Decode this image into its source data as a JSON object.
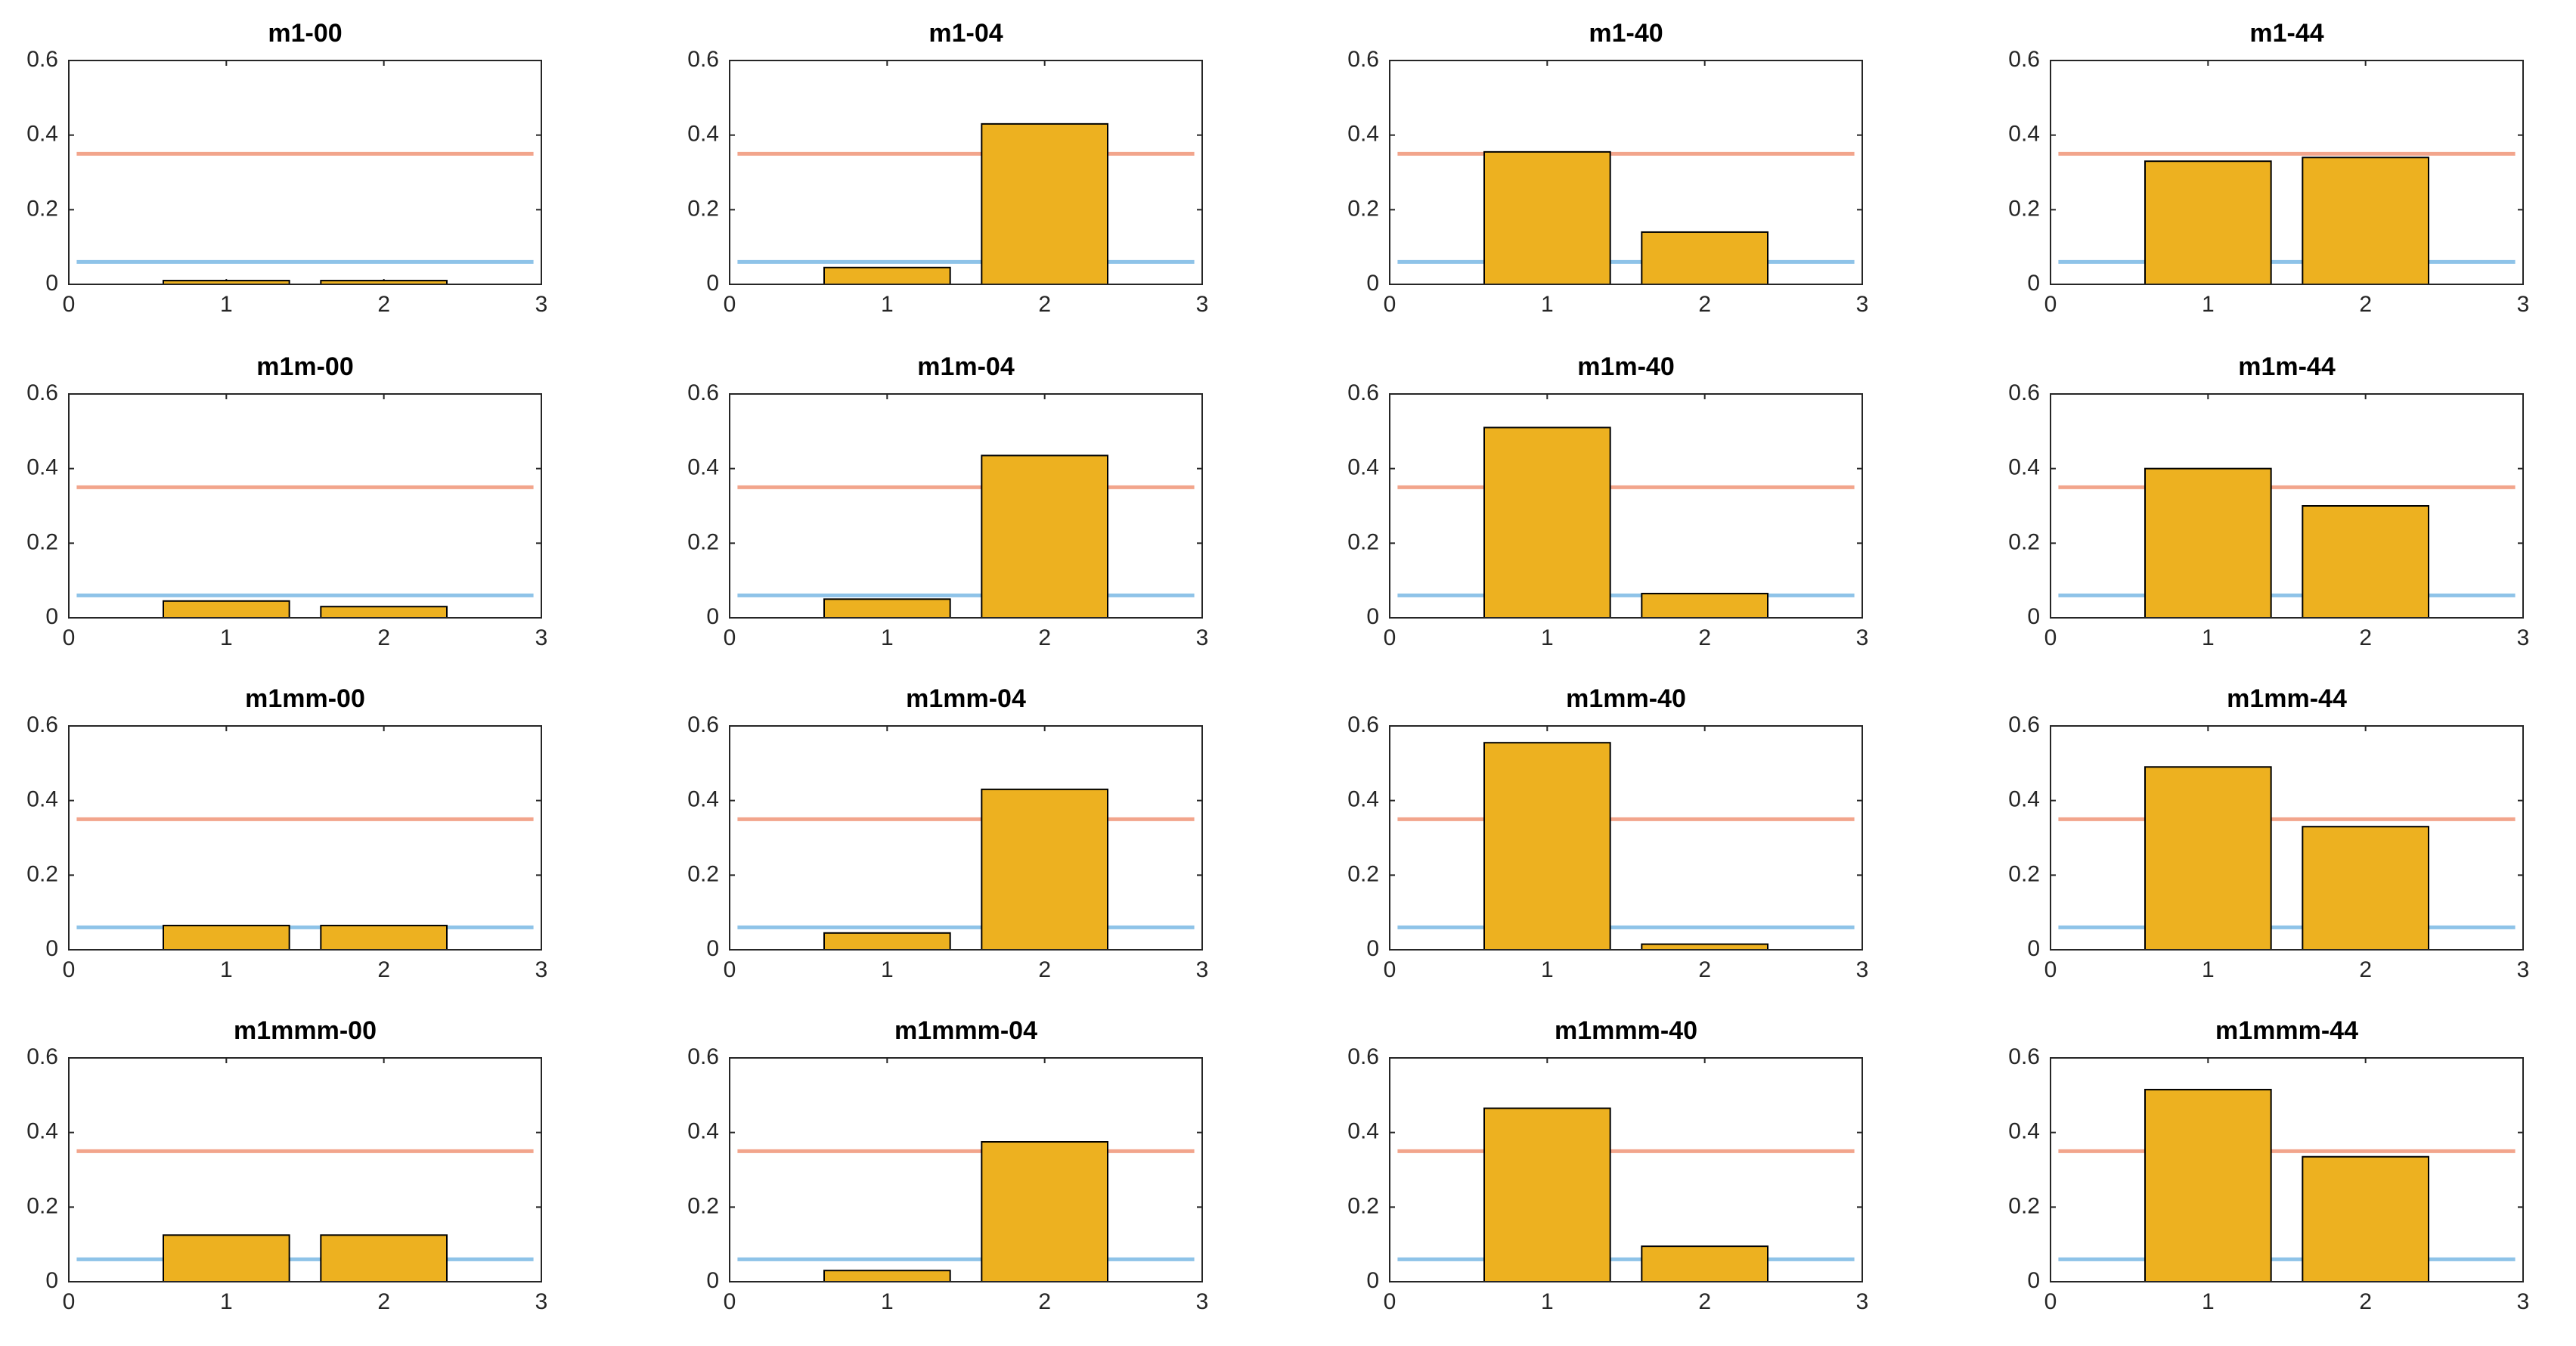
{
  "chart_data": [
    {
      "type": "bar",
      "title": "m1-00",
      "x": [
        1,
        2
      ],
      "values": [
        0.01,
        0.01
      ],
      "color": "#edb120",
      "xlim": [
        0,
        3
      ],
      "ylim": [
        0,
        0.6
      ],
      "xticks": [
        0,
        1,
        2,
        3
      ],
      "yticks": [
        0,
        0.2,
        0.4,
        0.6
      ],
      "reference_lines": [
        {
          "value": 0.35,
          "color": "#f2a58c"
        },
        {
          "value": 0.06,
          "color": "#8ec3e8"
        }
      ]
    },
    {
      "type": "bar",
      "title": "m1-04",
      "x": [
        1,
        2
      ],
      "values": [
        0.045,
        0.43
      ],
      "color": "#edb120",
      "xlim": [
        0,
        3
      ],
      "ylim": [
        0,
        0.6
      ],
      "xticks": [
        0,
        1,
        2,
        3
      ],
      "yticks": [
        0,
        0.2,
        0.4,
        0.6
      ],
      "reference_lines": [
        {
          "value": 0.35,
          "color": "#f2a58c"
        },
        {
          "value": 0.06,
          "color": "#8ec3e8"
        }
      ]
    },
    {
      "type": "bar",
      "title": "m1-40",
      "x": [
        1,
        2
      ],
      "values": [
        0.355,
        0.14
      ],
      "color": "#edb120",
      "xlim": [
        0,
        3
      ],
      "ylim": [
        0,
        0.6
      ],
      "xticks": [
        0,
        1,
        2,
        3
      ],
      "yticks": [
        0,
        0.2,
        0.4,
        0.6
      ],
      "reference_lines": [
        {
          "value": 0.35,
          "color": "#f2a58c"
        },
        {
          "value": 0.06,
          "color": "#8ec3e8"
        }
      ]
    },
    {
      "type": "bar",
      "title": "m1-44",
      "x": [
        1,
        2
      ],
      "values": [
        0.33,
        0.34
      ],
      "color": "#edb120",
      "xlim": [
        0,
        3
      ],
      "ylim": [
        0,
        0.6
      ],
      "xticks": [
        0,
        1,
        2,
        3
      ],
      "yticks": [
        0,
        0.2,
        0.4,
        0.6
      ],
      "reference_lines": [
        {
          "value": 0.35,
          "color": "#f2a58c"
        },
        {
          "value": 0.06,
          "color": "#8ec3e8"
        }
      ]
    },
    {
      "type": "bar",
      "title": "m1m-00",
      "x": [
        1,
        2
      ],
      "values": [
        0.045,
        0.03
      ],
      "color": "#edb120",
      "xlim": [
        0,
        3
      ],
      "ylim": [
        0,
        0.6
      ],
      "xticks": [
        0,
        1,
        2,
        3
      ],
      "yticks": [
        0,
        0.2,
        0.4,
        0.6
      ],
      "reference_lines": [
        {
          "value": 0.35,
          "color": "#f2a58c"
        },
        {
          "value": 0.06,
          "color": "#8ec3e8"
        }
      ]
    },
    {
      "type": "bar",
      "title": "m1m-04",
      "x": [
        1,
        2
      ],
      "values": [
        0.05,
        0.435
      ],
      "color": "#edb120",
      "xlim": [
        0,
        3
      ],
      "ylim": [
        0,
        0.6
      ],
      "xticks": [
        0,
        1,
        2,
        3
      ],
      "yticks": [
        0,
        0.2,
        0.4,
        0.6
      ],
      "reference_lines": [
        {
          "value": 0.35,
          "color": "#f2a58c"
        },
        {
          "value": 0.06,
          "color": "#8ec3e8"
        }
      ]
    },
    {
      "type": "bar",
      "title": "m1m-40",
      "x": [
        1,
        2
      ],
      "values": [
        0.51,
        0.065
      ],
      "color": "#edb120",
      "xlim": [
        0,
        3
      ],
      "ylim": [
        0,
        0.6
      ],
      "xticks": [
        0,
        1,
        2,
        3
      ],
      "yticks": [
        0,
        0.2,
        0.4,
        0.6
      ],
      "reference_lines": [
        {
          "value": 0.35,
          "color": "#f2a58c"
        },
        {
          "value": 0.06,
          "color": "#8ec3e8"
        }
      ]
    },
    {
      "type": "bar",
      "title": "m1m-44",
      "x": [
        1,
        2
      ],
      "values": [
        0.4,
        0.3
      ],
      "color": "#edb120",
      "xlim": [
        0,
        3
      ],
      "ylim": [
        0,
        0.6
      ],
      "xticks": [
        0,
        1,
        2,
        3
      ],
      "yticks": [
        0,
        0.2,
        0.4,
        0.6
      ],
      "reference_lines": [
        {
          "value": 0.35,
          "color": "#f2a58c"
        },
        {
          "value": 0.06,
          "color": "#8ec3e8"
        }
      ]
    },
    {
      "type": "bar",
      "title": "m1mm-00",
      "x": [
        1,
        2
      ],
      "values": [
        0.065,
        0.065
      ],
      "color": "#edb120",
      "xlim": [
        0,
        3
      ],
      "ylim": [
        0,
        0.6
      ],
      "xticks": [
        0,
        1,
        2,
        3
      ],
      "yticks": [
        0,
        0.2,
        0.4,
        0.6
      ],
      "reference_lines": [
        {
          "value": 0.35,
          "color": "#f2a58c"
        },
        {
          "value": 0.06,
          "color": "#8ec3e8"
        }
      ]
    },
    {
      "type": "bar",
      "title": "m1mm-04",
      "x": [
        1,
        2
      ],
      "values": [
        0.045,
        0.43
      ],
      "color": "#edb120",
      "xlim": [
        0,
        3
      ],
      "ylim": [
        0,
        0.6
      ],
      "xticks": [
        0,
        1,
        2,
        3
      ],
      "yticks": [
        0,
        0.2,
        0.4,
        0.6
      ],
      "reference_lines": [
        {
          "value": 0.35,
          "color": "#f2a58c"
        },
        {
          "value": 0.06,
          "color": "#8ec3e8"
        }
      ]
    },
    {
      "type": "bar",
      "title": "m1mm-40",
      "x": [
        1,
        2
      ],
      "values": [
        0.555,
        0.015
      ],
      "color": "#edb120",
      "xlim": [
        0,
        3
      ],
      "ylim": [
        0,
        0.6
      ],
      "xticks": [
        0,
        1,
        2,
        3
      ],
      "yticks": [
        0,
        0.2,
        0.4,
        0.6
      ],
      "reference_lines": [
        {
          "value": 0.35,
          "color": "#f2a58c"
        },
        {
          "value": 0.06,
          "color": "#8ec3e8"
        }
      ]
    },
    {
      "type": "bar",
      "title": "m1mm-44",
      "x": [
        1,
        2
      ],
      "values": [
        0.49,
        0.33
      ],
      "color": "#edb120",
      "xlim": [
        0,
        3
      ],
      "ylim": [
        0,
        0.6
      ],
      "xticks": [
        0,
        1,
        2,
        3
      ],
      "yticks": [
        0,
        0.2,
        0.4,
        0.6
      ],
      "reference_lines": [
        {
          "value": 0.35,
          "color": "#f2a58c"
        },
        {
          "value": 0.06,
          "color": "#8ec3e8"
        }
      ]
    },
    {
      "type": "bar",
      "title": "m1mmm-00",
      "x": [
        1,
        2
      ],
      "values": [
        0.125,
        0.125
      ],
      "color": "#edb120",
      "xlim": [
        0,
        3
      ],
      "ylim": [
        0,
        0.6
      ],
      "xticks": [
        0,
        1,
        2,
        3
      ],
      "yticks": [
        0,
        0.2,
        0.4,
        0.6
      ],
      "reference_lines": [
        {
          "value": 0.35,
          "color": "#f2a58c"
        },
        {
          "value": 0.06,
          "color": "#8ec3e8"
        }
      ]
    },
    {
      "type": "bar",
      "title": "m1mmm-04",
      "x": [
        1,
        2
      ],
      "values": [
        0.03,
        0.375
      ],
      "color": "#edb120",
      "xlim": [
        0,
        3
      ],
      "ylim": [
        0,
        0.6
      ],
      "xticks": [
        0,
        1,
        2,
        3
      ],
      "yticks": [
        0,
        0.2,
        0.4,
        0.6
      ],
      "reference_lines": [
        {
          "value": 0.35,
          "color": "#f2a58c"
        },
        {
          "value": 0.06,
          "color": "#8ec3e8"
        }
      ]
    },
    {
      "type": "bar",
      "title": "m1mmm-40",
      "x": [
        1,
        2
      ],
      "values": [
        0.465,
        0.095
      ],
      "color": "#edb120",
      "xlim": [
        0,
        3
      ],
      "ylim": [
        0,
        0.6
      ],
      "xticks": [
        0,
        1,
        2,
        3
      ],
      "yticks": [
        0,
        0.2,
        0.4,
        0.6
      ],
      "reference_lines": [
        {
          "value": 0.35,
          "color": "#f2a58c"
        },
        {
          "value": 0.06,
          "color": "#8ec3e8"
        }
      ]
    },
    {
      "type": "bar",
      "title": "m1mmm-44",
      "x": [
        1,
        2
      ],
      "values": [
        0.515,
        0.335
      ],
      "color": "#edb120",
      "xlim": [
        0,
        3
      ],
      "ylim": [
        0,
        0.6
      ],
      "xticks": [
        0,
        1,
        2,
        3
      ],
      "yticks": [
        0,
        0.2,
        0.4,
        0.6
      ],
      "reference_lines": [
        {
          "value": 0.35,
          "color": "#f2a58c"
        },
        {
          "value": 0.06,
          "color": "#8ec3e8"
        }
      ]
    }
  ]
}
